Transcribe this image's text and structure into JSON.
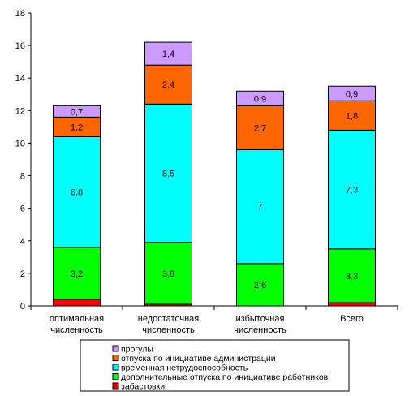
{
  "chart_data": {
    "type": "bar",
    "stacked": true,
    "title": "",
    "xlabel": "",
    "ylabel": "",
    "ylim": [
      0,
      18
    ],
    "yticks": [
      "0",
      "2",
      "4",
      "6",
      "8",
      "10",
      "12",
      "14",
      "16",
      "18"
    ],
    "grid": false,
    "legend_position": "bottom",
    "categories": [
      [
        "оптимальная",
        "численность"
      ],
      [
        "недостаточная",
        "численность"
      ],
      [
        "избыточная",
        "численность"
      ],
      [
        "Всего"
      ]
    ],
    "series": [
      {
        "name": "забастовки",
        "color": "#ff0000",
        "values": [
          0.4,
          0.1,
          0.0,
          0.2
        ],
        "labels": [
          "",
          "",
          "",
          ""
        ]
      },
      {
        "name": "дополнительные отпуска по инициативе работников",
        "color": "#00ff00",
        "values": [
          3.2,
          3.8,
          2.6,
          3.3
        ],
        "labels": [
          "3,2",
          "3,8",
          "2,6",
          "3,3"
        ]
      },
      {
        "name": "временная нетрудоспособность",
        "color": "#00ffff",
        "values": [
          6.8,
          8.5,
          7.0,
          7.3
        ],
        "labels": [
          "6,8",
          "8,5",
          "7",
          "7,3"
        ]
      },
      {
        "name": "отпуска по инициативе администрации",
        "color": "#ff6600",
        "values": [
          1.2,
          2.4,
          2.7,
          1.8
        ],
        "labels": [
          "1,2",
          "2,4",
          "2,7",
          "1,8"
        ]
      },
      {
        "name": "прогулы",
        "color": "#cc99ff",
        "values": [
          0.7,
          1.4,
          0.9,
          0.9
        ],
        "labels": [
          "0,7",
          "1,4",
          "0,9",
          "0,9"
        ]
      }
    ],
    "legend_order": [
      4,
      3,
      2,
      1,
      0
    ]
  }
}
